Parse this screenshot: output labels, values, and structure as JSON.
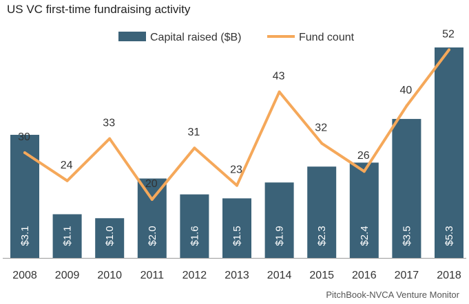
{
  "title": "US VC first-time fundraising activity",
  "source": "PitchBook-NVCA Venture Monitor",
  "colors": {
    "bar": "#3b6278",
    "line": "#f5a85a",
    "axis": "#9a9a9a"
  },
  "chart_data": {
    "type": "bar+line",
    "title": "US VC first-time fundraising activity",
    "categories": [
      "2008",
      "2009",
      "2010",
      "2011",
      "2012",
      "2013",
      "2014",
      "2015",
      "2016",
      "2017",
      "2018"
    ],
    "series": [
      {
        "name": "Capital raised ($B)",
        "type": "bar",
        "values": [
          3.1,
          1.1,
          1.0,
          2.0,
          1.6,
          1.5,
          1.9,
          2.3,
          2.4,
          3.5,
          5.3
        ],
        "labels": [
          "$3.1",
          "$1.1",
          "$1.0",
          "$2.0",
          "$1.6",
          "$1.5",
          "$1.9",
          "$2.3",
          "$2.4",
          "$3.5",
          "$5.3"
        ]
      },
      {
        "name": "Fund count",
        "type": "line",
        "values": [
          30,
          24,
          33,
          20,
          31,
          23,
          43,
          32,
          26,
          40,
          52
        ]
      }
    ],
    "legend_position": "top-center",
    "grid": false
  }
}
